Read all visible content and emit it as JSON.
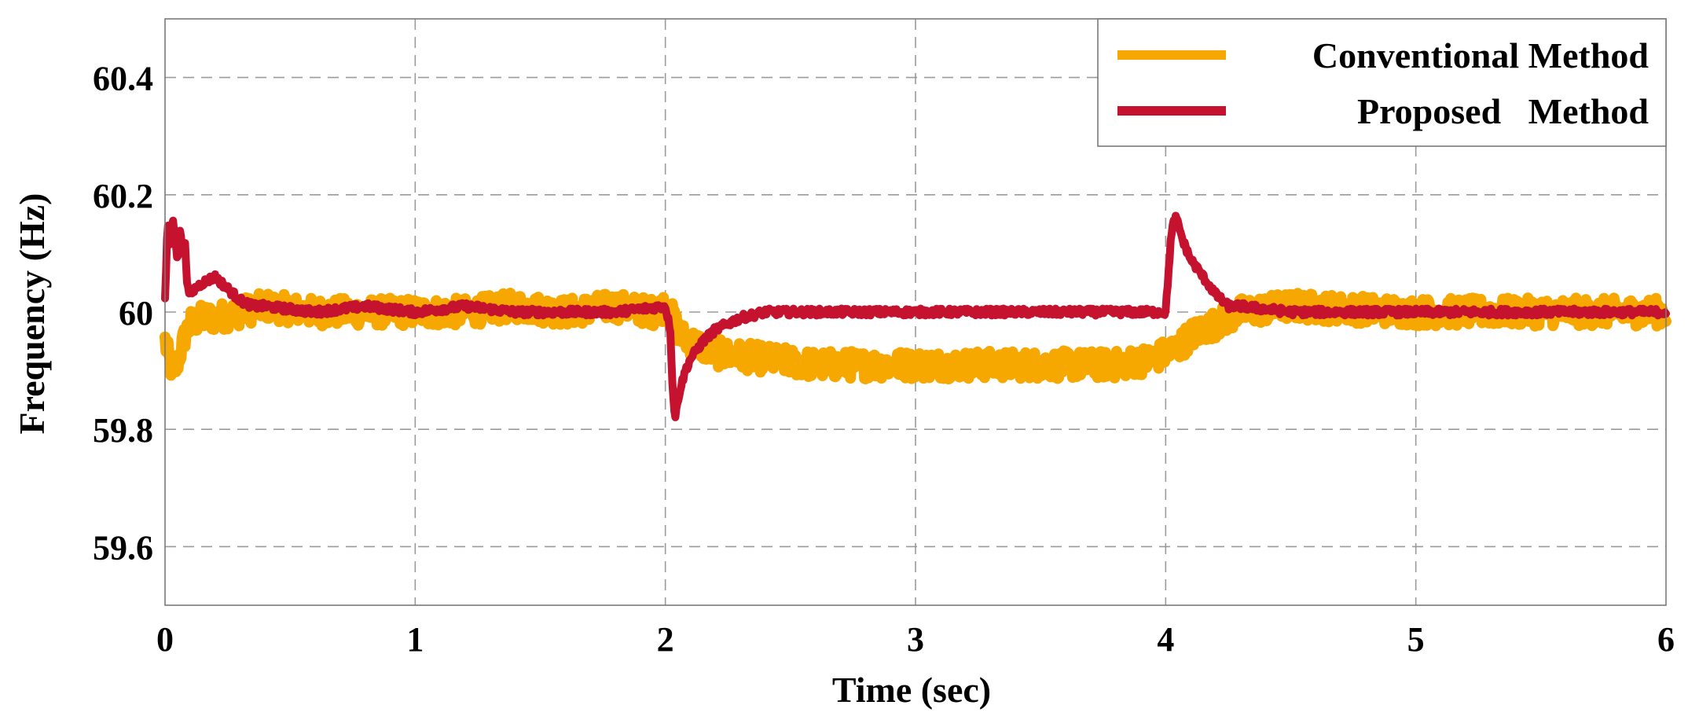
{
  "chart_data": {
    "type": "line",
    "xlabel": "Time (sec)",
    "ylabel": "Frequency (Hz)",
    "xlim": [
      0,
      6
    ],
    "ylim": [
      59.5,
      60.5
    ],
    "xticks": [
      0,
      1,
      2,
      3,
      4,
      5,
      6
    ],
    "xtick_labels": [
      "0",
      "1",
      "2",
      "3",
      "4",
      "5",
      "6"
    ],
    "yticks": [
      59.6,
      59.8,
      60.0,
      60.2,
      60.4
    ],
    "ytick_labels": [
      "59.6",
      "59.8",
      "60",
      "60.2",
      "60.4"
    ],
    "grid": true,
    "legend_position": "top-right",
    "series": [
      {
        "name": "Conventional Method",
        "color": "#F7A800",
        "x": [
          0.0,
          0.02,
          0.04,
          0.06,
          0.08,
          0.1,
          0.15,
          0.2,
          0.3,
          0.4,
          0.6,
          0.8,
          1.0,
          1.2,
          1.4,
          1.6,
          1.8,
          1.95,
          2.0,
          2.03,
          2.06,
          2.1,
          2.2,
          2.4,
          2.6,
          2.8,
          3.0,
          3.2,
          3.4,
          3.6,
          3.8,
          3.95,
          4.0,
          4.05,
          4.1,
          4.2,
          4.3,
          4.5,
          5.0,
          5.5,
          6.0
        ],
        "y": [
          59.95,
          59.91,
          59.9,
          59.93,
          59.96,
          59.98,
          59.99,
          59.99,
          60.0,
          60.01,
          60.0,
          60.0,
          60.0,
          60.0,
          60.01,
          60.0,
          60.01,
          60.0,
          60.01,
          59.99,
          59.96,
          59.95,
          59.93,
          59.92,
          59.91,
          59.91,
          59.91,
          59.91,
          59.91,
          59.91,
          59.91,
          59.92,
          59.93,
          59.94,
          59.96,
          59.98,
          60.0,
          60.01,
          60.0,
          60.0,
          60.0
        ]
      },
      {
        "name": "Proposed   Method",
        "color": "#C4122F",
        "x": [
          0.0,
          0.01,
          0.02,
          0.03,
          0.04,
          0.05,
          0.06,
          0.07,
          0.08,
          0.09,
          0.1,
          0.12,
          0.15,
          0.2,
          0.25,
          0.3,
          0.35,
          0.4,
          0.6,
          0.8,
          1.0,
          1.2,
          1.4,
          1.6,
          1.8,
          2.0,
          2.02,
          2.03,
          2.04,
          2.05,
          2.06,
          2.08,
          2.1,
          2.15,
          2.2,
          2.3,
          2.4,
          2.6,
          3.0,
          3.5,
          4.0,
          4.01,
          4.02,
          4.03,
          4.04,
          4.05,
          4.07,
          4.1,
          4.15,
          4.2,
          4.25,
          4.3,
          4.5,
          5.0,
          5.5,
          6.0
        ],
        "y": [
          60.02,
          60.15,
          60.11,
          60.16,
          60.13,
          60.09,
          60.14,
          60.1,
          60.12,
          60.04,
          60.03,
          60.04,
          60.05,
          60.06,
          60.04,
          60.02,
          60.01,
          60.01,
          60.0,
          60.01,
          60.0,
          60.01,
          60.0,
          60.0,
          60.0,
          60.01,
          59.97,
          59.86,
          59.82,
          59.85,
          59.87,
          59.9,
          59.92,
          59.95,
          59.97,
          59.99,
          60.0,
          60.0,
          60.0,
          60.0,
          60.0,
          60.06,
          60.12,
          60.15,
          60.16,
          60.15,
          60.12,
          60.09,
          60.06,
          60.03,
          60.01,
          60.01,
          60.0,
          60.0,
          60.0,
          60.0
        ]
      }
    ]
  }
}
